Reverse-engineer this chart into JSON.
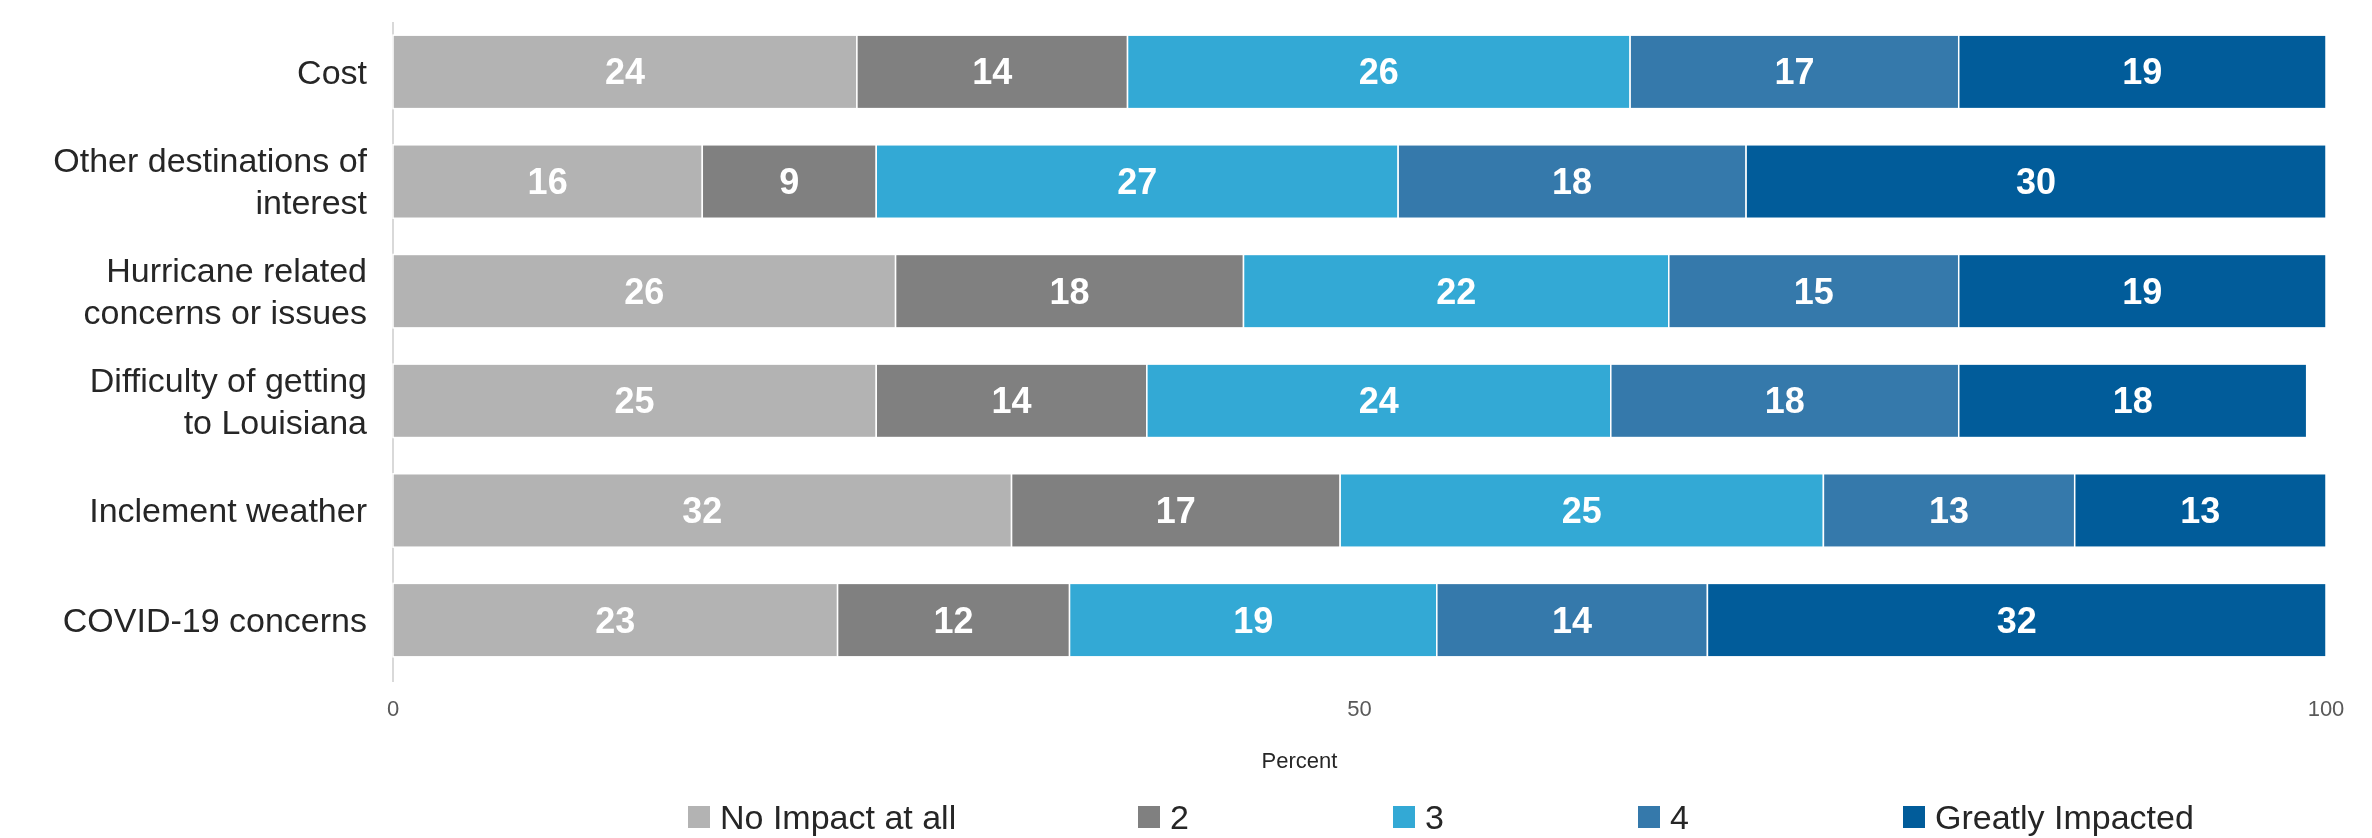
{
  "chart_data": {
    "type": "bar",
    "orientation": "horizontal",
    "stacked": true,
    "xlabel": "Percent",
    "categories": [
      "Cost",
      "Other destinations of interest",
      "Hurricane related concerns or issues",
      "Difficulty of getting to Louisiana",
      "Inclement weather",
      "COVID-19 concerns"
    ],
    "series": [
      {
        "name": "No Impact at all",
        "color": "#b3b3b3",
        "values": [
          24,
          16,
          26,
          25,
          32,
          23
        ]
      },
      {
        "name": "2",
        "color": "#808080",
        "values": [
          14,
          9,
          18,
          14,
          17,
          12
        ]
      },
      {
        "name": "3",
        "color": "#33a9d5",
        "values": [
          26,
          27,
          22,
          24,
          25,
          19
        ]
      },
      {
        "name": "4",
        "color": "#3579ab",
        "values": [
          17,
          18,
          15,
          18,
          13,
          14
        ]
      },
      {
        "name": "Greatly Impacted",
        "color": "#015c9a",
        "values": [
          19,
          30,
          19,
          18,
          13,
          32
        ]
      }
    ],
    "xlim": [
      0,
      100
    ],
    "xticks": [
      0,
      50,
      100
    ],
    "data_labels": true,
    "legend": "bottom",
    "grid": false
  }
}
